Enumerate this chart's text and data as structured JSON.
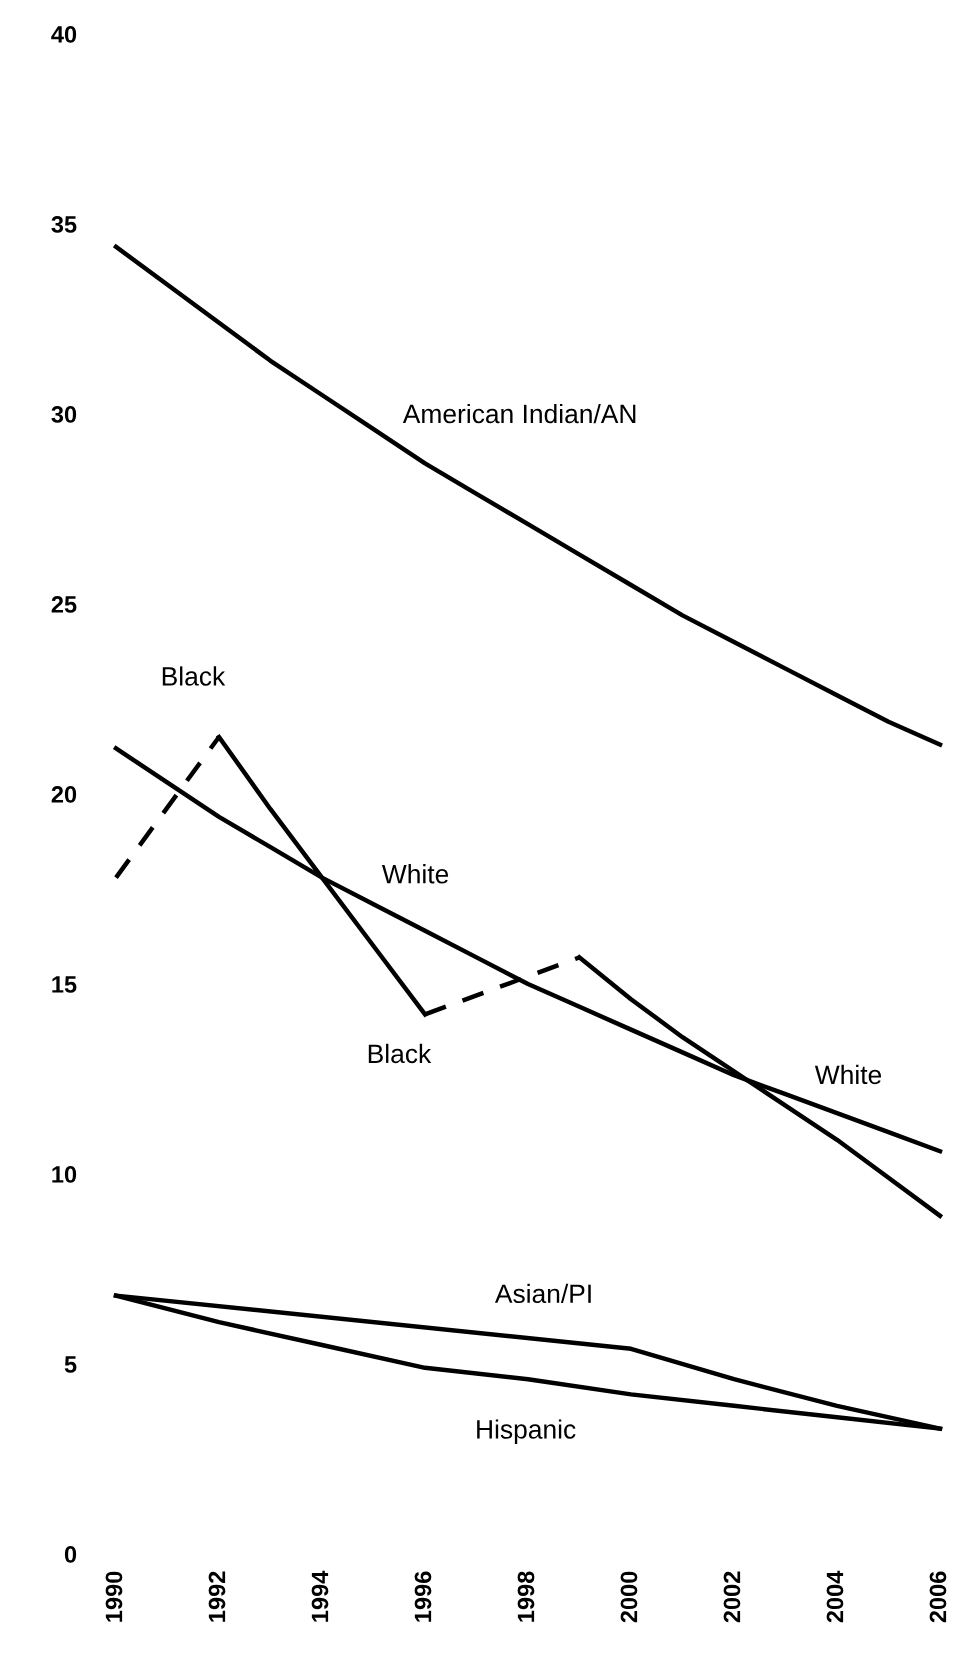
{
  "chart_data": {
    "type": "line",
    "ylim": [
      0,
      40
    ],
    "yticks": [
      0,
      5,
      10,
      15,
      20,
      25,
      30,
      35,
      40
    ],
    "xlim": [
      1990,
      2006
    ],
    "xticks": [
      1990,
      1992,
      1994,
      1996,
      1998,
      2000,
      2002,
      2004,
      2006
    ],
    "grid": false,
    "legend": false,
    "marker": "none",
    "line_style": "solid",
    "series": [
      {
        "color": "#000000",
        "x": [
          1990,
          1991,
          1992,
          1993,
          1994,
          1995,
          1996,
          1997,
          1998,
          1999,
          2000,
          2001,
          2002,
          2003,
          2004,
          2005,
          2006
        ],
        "values": [
          34.4,
          33.4,
          32.4,
          31.4,
          30.5,
          29.6,
          28.7,
          27.9,
          27.1,
          26.3,
          25.5,
          24.7,
          24.0,
          23.3,
          22.6,
          21.9,
          21.3
        ]
      },
      {
        "color": "#000000",
        "x": [
          1990,
          1991,
          1992,
          1993,
          1994,
          1995,
          1996,
          1997,
          1998,
          1999,
          2000,
          2001,
          2002,
          2003,
          2004,
          2005,
          2006
        ],
        "values": [
          21.2,
          20.3,
          19.4,
          18.6,
          17.8,
          17.1,
          16.4,
          15.7,
          15.0,
          14.4,
          13.8,
          13.2,
          12.6,
          12.1,
          11.6,
          11.1,
          10.6
        ]
      },
      {
        "color": "#000000",
        "line_style": "dashed",
        "x": [
          1990,
          1992
        ],
        "values": [
          17.8,
          21.5
        ]
      },
      {
        "color": "#000000",
        "x": [
          1992,
          1993,
          1994,
          1995,
          1996
        ],
        "values": [
          21.5,
          19.6,
          17.8,
          16.0,
          14.2
        ]
      },
      {
        "color": "#000000",
        "line_style": "dashed",
        "x": [
          1996,
          1999
        ],
        "values": [
          14.2,
          15.7
        ]
      },
      {
        "color": "#000000",
        "x": [
          1999,
          2000,
          2001,
          2002,
          2003,
          2004,
          2005,
          2006
        ],
        "values": [
          15.7,
          14.6,
          13.6,
          12.7,
          11.8,
          10.9,
          9.9,
          8.9
        ]
      },
      {
        "color": "#000000",
        "x": [
          1990,
          2000,
          2002,
          2004,
          2006
        ],
        "values": [
          6.8,
          5.4,
          4.6,
          3.9,
          3.3
        ]
      },
      {
        "color": "#000000",
        "x": [
          1990,
          1992,
          1994,
          1996,
          1998,
          2000,
          2002,
          2004,
          2006
        ],
        "values": [
          6.8,
          6.1,
          5.5,
          4.9,
          4.6,
          4.2,
          3.9,
          3.6,
          3.3
        ]
      }
    ],
    "annotations": [
      {
        "text": "American Indian/AN",
        "x": 1996,
        "y": 28.7
      },
      {
        "text": "Black",
        "x": 1992,
        "y": 21.5
      },
      {
        "text": "White",
        "x": 1995,
        "y": 17.1
      },
      {
        "text": "Black",
        "x": 1996,
        "y": 14.2
      },
      {
        "text": "White",
        "x": 2004,
        "y": 11.6
      },
      {
        "text": "Asian/PI",
        "x": 2000,
        "y": 5.4
      },
      {
        "text": "Hispanic",
        "x": 1996,
        "y": 4.9
      }
    ]
  }
}
